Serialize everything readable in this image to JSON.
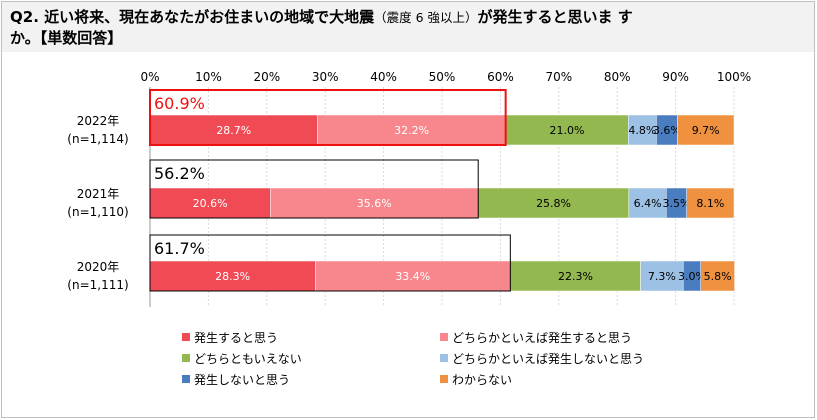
{
  "title": {
    "line1_main": "Q2. 近い将来、現在あなたがお住まいの地域で大地震",
    "line1_paren": "（震度 6 強以上）",
    "line1_end": "が発生すると思いま す",
    "line2": "か。【単数回答】"
  },
  "colors": {
    "s1": "#f04b55",
    "s2": "#f7878d",
    "s3": "#93b84f",
    "s4": "#9dc0e5",
    "s5": "#4a7dc0",
    "s6": "#f0913f",
    "highlight": "#ee1111",
    "axis": "#999999"
  },
  "chart_data": {
    "type": "bar",
    "orientation": "horizontal-stacked",
    "xlim": [
      0,
      100
    ],
    "x_ticks": [
      "0%",
      "10%",
      "20%",
      "30%",
      "40%",
      "50%",
      "60%",
      "70%",
      "80%",
      "90%",
      "100%"
    ],
    "categories": [
      {
        "year": "2022年",
        "n": "(n=1,114)"
      },
      {
        "year": "2021年",
        "n": "(n=1,110)"
      },
      {
        "year": "2020年",
        "n": "(n=1,111)"
      }
    ],
    "series": [
      {
        "name": "発生すると思う",
        "values": [
          28.7,
          20.6,
          28.3
        ],
        "labels": [
          "28.7%",
          "20.6%",
          "28.3%"
        ]
      },
      {
        "name": "どちらかといえば発生すると思う",
        "values": [
          32.2,
          35.6,
          33.4
        ],
        "labels": [
          "32.2%",
          "35.6%",
          "33.4%"
        ]
      },
      {
        "name": "どちらともいえない",
        "values": [
          21.0,
          25.8,
          22.3
        ],
        "labels": [
          "21.0%",
          "25.8%",
          "22.3%"
        ]
      },
      {
        "name": "どちらかといえば発生しないと思う",
        "values": [
          4.8,
          6.4,
          7.3
        ],
        "labels": [
          "4.8%",
          "6.4%",
          "7.3%"
        ]
      },
      {
        "name": "発生しないと思う",
        "values": [
          3.6,
          3.5,
          3.0
        ],
        "labels": [
          "3.6%",
          "3.5%",
          "3.0%"
        ]
      },
      {
        "name": "わからない",
        "values": [
          9.7,
          8.1,
          5.8
        ],
        "labels": [
          "9.7%",
          "8.1%",
          "5.8%"
        ]
      }
    ],
    "totals": [
      {
        "value": 60.9,
        "label": "60.9%"
      },
      {
        "value": 56.2,
        "label": "56.2%"
      },
      {
        "value": 61.7,
        "label": "61.7%"
      }
    ],
    "legend_position": "bottom"
  }
}
